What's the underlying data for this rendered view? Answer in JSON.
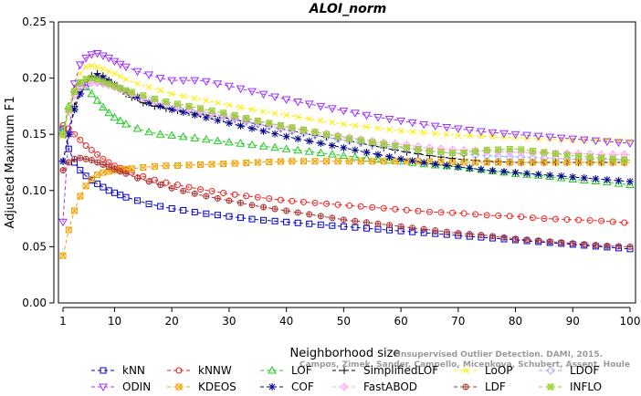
{
  "chart_data": {
    "type": "line",
    "title": "ALOI_norm",
    "xlabel": "Neighborhood size",
    "ylabel": "Adjusted Maximum F1",
    "xlim": [
      1,
      100
    ],
    "ylim": [
      0.0,
      0.25
    ],
    "x_ticks": [
      1,
      10,
      20,
      30,
      40,
      50,
      60,
      70,
      80,
      90,
      100
    ],
    "y_ticks": [
      "0.00",
      "0.05",
      "0.10",
      "0.15",
      "0.20",
      "0.25"
    ],
    "grid": false,
    "legend_position": "bottom",
    "x": [
      1,
      2,
      3,
      4,
      5,
      6,
      7,
      8,
      9,
      10,
      12,
      14,
      16,
      18,
      20,
      25,
      30,
      35,
      40,
      45,
      50,
      55,
      60,
      65,
      70,
      75,
      80,
      85,
      90,
      95,
      100
    ],
    "series": [
      {
        "name": "kNN",
        "color": "#0000cc",
        "marker": "square",
        "values": [
          0.155,
          0.137,
          0.125,
          0.118,
          0.113,
          0.109,
          0.106,
          0.103,
          0.1,
          0.098,
          0.094,
          0.091,
          0.088,
          0.086,
          0.084,
          0.08,
          0.077,
          0.074,
          0.072,
          0.07,
          0.068,
          0.066,
          0.064,
          0.062,
          0.06,
          0.058,
          0.056,
          0.054,
          0.052,
          0.05,
          0.048
        ]
      },
      {
        "name": "kNNW",
        "color": "#ee2222",
        "marker": "circle",
        "values": [
          0.158,
          0.155,
          0.15,
          0.145,
          0.14,
          0.136,
          0.132,
          0.128,
          0.125,
          0.122,
          0.118,
          0.114,
          0.111,
          0.108,
          0.106,
          0.101,
          0.097,
          0.094,
          0.091,
          0.089,
          0.087,
          0.085,
          0.083,
          0.081,
          0.08,
          0.078,
          0.077,
          0.075,
          0.074,
          0.073,
          0.071
        ]
      },
      {
        "name": "LOF",
        "color": "#22cc22",
        "marker": "triangle-up",
        "values": [
          0.153,
          0.175,
          0.19,
          0.195,
          0.192,
          0.186,
          0.18,
          0.174,
          0.169,
          0.165,
          0.159,
          0.155,
          0.152,
          0.15,
          0.149,
          0.146,
          0.143,
          0.14,
          0.137,
          0.134,
          0.131,
          0.128,
          0.126,
          0.123,
          0.121,
          0.118,
          0.115,
          0.113,
          0.11,
          0.108,
          0.105
        ]
      },
      {
        "name": "SimplifiedLOF",
        "color": "#000000",
        "marker": "plus",
        "values": [
          0.126,
          0.15,
          0.175,
          0.19,
          0.198,
          0.202,
          0.204,
          0.202,
          0.198,
          0.194,
          0.186,
          0.18,
          0.176,
          0.174,
          0.172,
          0.168,
          0.164,
          0.159,
          0.154,
          0.149,
          0.145,
          0.14,
          0.135,
          0.131,
          0.128,
          0.126,
          0.125,
          0.125,
          0.125,
          0.125,
          0.125
        ]
      },
      {
        "name": "LoOP",
        "color": "#ffee00",
        "marker": "x",
        "values": [
          0.148,
          0.172,
          0.192,
          0.204,
          0.21,
          0.211,
          0.21,
          0.208,
          0.206,
          0.204,
          0.199,
          0.195,
          0.192,
          0.189,
          0.186,
          0.181,
          0.176,
          0.171,
          0.167,
          0.163,
          0.159,
          0.156,
          0.153,
          0.151,
          0.149,
          0.148,
          0.147,
          0.146,
          0.145,
          0.145,
          0.144
        ]
      },
      {
        "name": "LDOF",
        "color": "#aaaaff",
        "marker": "diamond",
        "values": [
          0.126,
          0.15,
          0.172,
          0.186,
          0.193,
          0.196,
          0.197,
          0.196,
          0.194,
          0.192,
          0.188,
          0.184,
          0.181,
          0.178,
          0.175,
          0.17,
          0.165,
          0.159,
          0.154,
          0.149,
          0.145,
          0.141,
          0.138,
          0.135,
          0.133,
          0.131,
          0.13,
          0.129,
          0.128,
          0.128,
          0.127
        ]
      },
      {
        "name": "ODIN",
        "color": "#9933ff",
        "marker": "triangle-down",
        "values": [
          0.072,
          0.15,
          0.195,
          0.212,
          0.218,
          0.221,
          0.222,
          0.22,
          0.218,
          0.215,
          0.21,
          0.206,
          0.203,
          0.2,
          0.198,
          0.198,
          0.193,
          0.187,
          0.181,
          0.176,
          0.171,
          0.166,
          0.162,
          0.158,
          0.155,
          0.152,
          0.15,
          0.148,
          0.146,
          0.144,
          0.142
        ]
      },
      {
        "name": "KDEOS",
        "color": "#f0a000",
        "marker": "square-x",
        "values": [
          0.042,
          0.065,
          0.082,
          0.095,
          0.104,
          0.11,
          0.114,
          0.116,
          0.117,
          0.118,
          0.119,
          0.12,
          0.121,
          0.122,
          0.122,
          0.123,
          0.124,
          0.125,
          0.126,
          0.126,
          0.126,
          0.126,
          0.126,
          0.126,
          0.125,
          0.125,
          0.125,
          0.125,
          0.125,
          0.125,
          0.125
        ]
      },
      {
        "name": "COF",
        "color": "#000088",
        "marker": "asterisk",
        "values": [
          0.126,
          0.15,
          0.172,
          0.186,
          0.195,
          0.2,
          0.202,
          0.2,
          0.197,
          0.194,
          0.188,
          0.183,
          0.178,
          0.175,
          0.172,
          0.166,
          0.16,
          0.154,
          0.148,
          0.143,
          0.138,
          0.133,
          0.128,
          0.124,
          0.121,
          0.118,
          0.116,
          0.114,
          0.112,
          0.11,
          0.108
        ]
      },
      {
        "name": "FastABOD",
        "color": "#ffaaee",
        "marker": "diamond-plus",
        "values": [
          0.15,
          0.17,
          0.185,
          0.192,
          0.195,
          0.196,
          0.196,
          0.195,
          0.194,
          0.192,
          0.188,
          0.184,
          0.181,
          0.178,
          0.176,
          0.171,
          0.166,
          0.161,
          0.156,
          0.152,
          0.148,
          0.144,
          0.141,
          0.138,
          0.136,
          0.135,
          0.134,
          0.133,
          0.133,
          0.132,
          0.132
        ]
      },
      {
        "name": "LDF",
        "color": "#aa3333",
        "marker": "circle-plus",
        "values": [
          0.118,
          0.125,
          0.128,
          0.129,
          0.128,
          0.127,
          0.125,
          0.123,
          0.121,
          0.119,
          0.115,
          0.111,
          0.108,
          0.105,
          0.102,
          0.096,
          0.091,
          0.086,
          0.082,
          0.078,
          0.074,
          0.071,
          0.068,
          0.065,
          0.062,
          0.06,
          0.057,
          0.055,
          0.053,
          0.051,
          0.05
        ]
      },
      {
        "name": "INFLO",
        "color": "#99cc33",
        "marker": "square-star",
        "values": [
          0.15,
          0.172,
          0.188,
          0.196,
          0.199,
          0.2,
          0.199,
          0.197,
          0.195,
          0.193,
          0.189,
          0.186,
          0.183,
          0.18,
          0.178,
          0.173,
          0.168,
          0.162,
          0.157,
          0.152,
          0.147,
          0.143,
          0.139,
          0.135,
          0.133,
          0.136,
          0.137,
          0.134,
          0.131,
          0.129,
          0.127
        ]
      }
    ],
    "watermark": [
      "Unsupervised Outlier Detection. DAMI, 2015.",
      "Campos, Zimek, Sander, Campello, Micenkova, Schubert, Assent, Houle"
    ]
  }
}
